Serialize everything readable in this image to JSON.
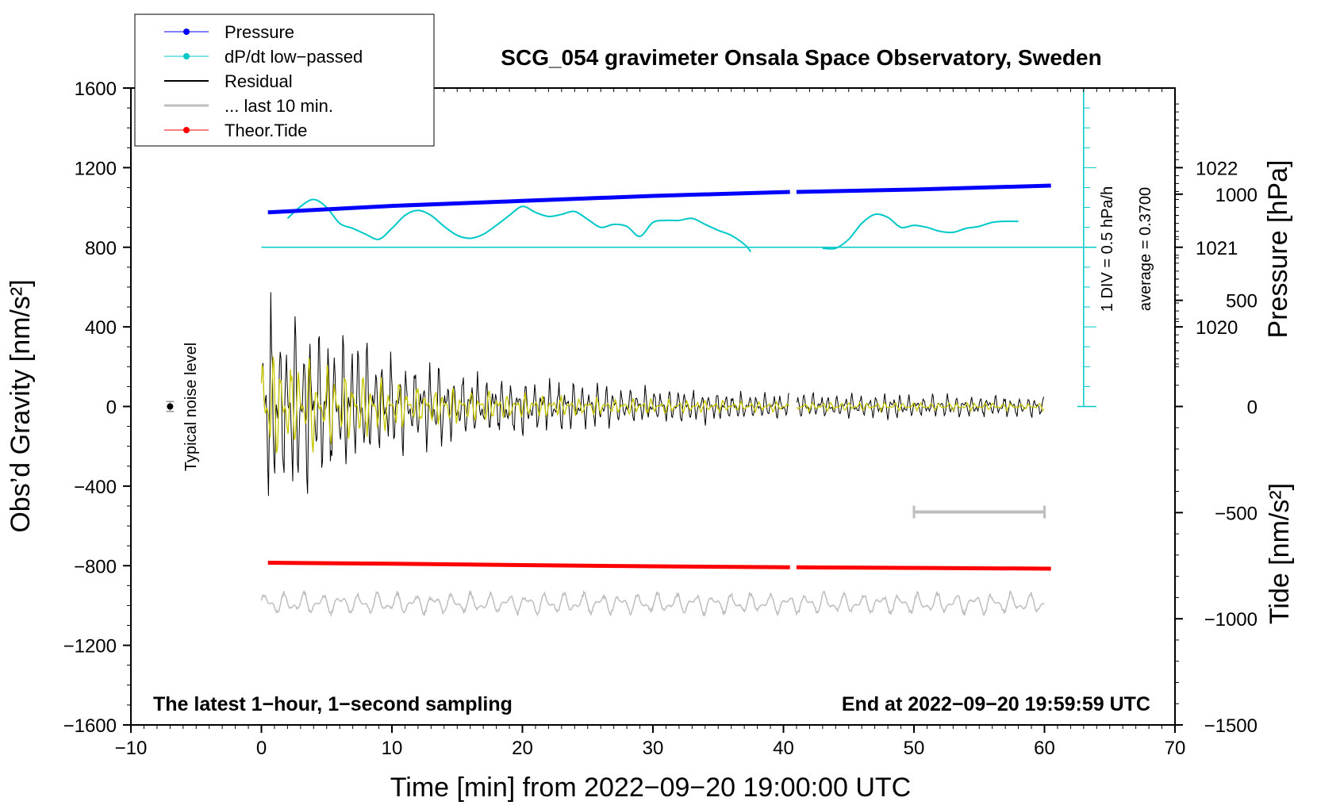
{
  "chart_data": {
    "type": "line",
    "title": "SCG_054 gravimeter Onsala Space Observatory, Sweden",
    "xlabel": "Time [min] from 2022−09−20 19:00:00 UTC",
    "ylabel_left": "Obs’d Gravity [nm/s²]",
    "ylabel_right_top": "Pressure [hPa]",
    "ylabel_right_bottom": "Tide [nm/s²]",
    "xlim": [
      -10,
      70
    ],
    "ylim": [
      -1600,
      1600
    ],
    "x_ticks": [
      -10,
      0,
      10,
      20,
      30,
      40,
      50,
      60,
      70
    ],
    "x_tick_labels": [
      "−10",
      "0",
      "10",
      "20",
      "30",
      "40",
      "50",
      "60",
      "70"
    ],
    "y_ticks": [
      -1600,
      -1200,
      -800,
      -400,
      0,
      400,
      800,
      1200,
      1600
    ],
    "y_tick_labels": [
      "−1600",
      "−1200",
      "−800",
      "−400",
      "0",
      "400",
      "800",
      "1200",
      "1600"
    ],
    "pressure_axis": {
      "ticks": [
        1020,
        1021,
        1022
      ],
      "tick_labels": [
        "1020",
        "1021",
        "1022"
      ],
      "gravity_at_1021": 800,
      "gravity_per_hPa": 400
    },
    "tide_axis": {
      "ticks": [
        -1500,
        -1000,
        -500,
        0,
        500,
        1000
      ],
      "tick_labels": [
        "−1500",
        "−1000",
        "−500",
        "0",
        "500",
        "1000"
      ],
      "range": [
        -1500,
        1500
      ]
    },
    "legend": {
      "position": "top-left",
      "entries": [
        {
          "label": "Pressure",
          "color": "#0000ff",
          "marker": true
        },
        {
          "label": "dP/dt low−passed",
          "color": "#00c8c8",
          "marker": true
        },
        {
          "label": "Residual",
          "color": "#000000",
          "marker": false
        },
        {
          "label": "... last 10 min.",
          "color": "#bebebe",
          "marker": false
        },
        {
          "label": "Theor.Tide",
          "color": "#ff0000",
          "marker": true
        }
      ]
    },
    "annotations": {
      "bottom_left": "The latest 1−hour, 1−second sampling",
      "bottom_right": "End at 2022−09−20 19:59:59 UTC",
      "noise": "Typical noise level",
      "div_scale": "1 DIV = 0.5 hPa/h",
      "average": "average = 0.3700"
    },
    "series": [
      {
        "name": "Pressure",
        "color": "#0000ff",
        "segments": [
          {
            "x": [
              0.5,
              10,
              20,
              30,
              40.5
            ],
            "y": [
              975,
              1008,
              1033,
              1058,
              1078
            ]
          },
          {
            "x": [
              41,
              50,
              60.5
            ],
            "y": [
              1078,
              1090,
              1110
            ]
          }
        ]
      },
      {
        "name": "dP/dt low-passed",
        "color": "#00c8c8",
        "baseline": 800,
        "segments": [
          {
            "x": [
              2,
              3,
              4,
              5,
              6,
              7,
              8,
              9,
              10,
              11,
              12,
              13,
              14,
              15,
              16,
              17,
              18,
              19,
              20,
              21,
              22,
              23,
              24,
              25,
              26,
              27,
              28,
              29,
              30,
              31,
              32,
              33,
              34,
              35,
              36,
              37,
              37.5
            ],
            "y": [
              945,
              1005,
              1040,
              1000,
              920,
              895,
              865,
              840,
              895,
              960,
              985,
              960,
              905,
              860,
              845,
              865,
              910,
              960,
              1005,
              975,
              955,
              965,
              980,
              940,
              900,
              915,
              905,
              855,
              925,
              935,
              935,
              945,
              915,
              885,
              860,
              815,
              778
            ]
          },
          {
            "x": [
              43,
              44,
              45,
              46,
              47,
              48,
              49,
              50,
              51,
              52,
              53,
              54,
              55,
              56,
              57,
              58
            ],
            "y": [
              795,
              795,
              840,
              920,
              965,
              950,
              900,
              910,
              900,
              880,
              875,
              895,
              905,
              925,
              930,
              930
            ]
          }
        ]
      },
      {
        "name": "Residual",
        "color": "#000000",
        "x_range": [
          0,
          60
        ],
        "gap": [
          40.5,
          41
        ],
        "envelope_start": 500,
        "envelope_end": 50
      },
      {
        "name": "Residual low-passed",
        "color": "#c8c800",
        "x_range": [
          0,
          60
        ],
        "gap": [
          40.5,
          41
        ],
        "envelope_start": 260,
        "envelope_end": 15
      },
      {
        "name": "Theor.Tide",
        "color": "#ff0000",
        "segments": [
          {
            "x": [
              0.5,
              10,
              20,
              30,
              40.5
            ],
            "y": [
              -785,
              -790,
              -797,
              -803,
              -808
            ]
          },
          {
            "x": [
              41,
              50,
              60.5
            ],
            "y": [
              -808,
              -811,
              -815
            ]
          }
        ]
      },
      {
        "name": "... last 10 min.",
        "color": "#bebebe",
        "x_range": [
          0,
          60
        ],
        "center": -990,
        "amplitude": 55
      },
      {
        "name": "Typical noise level",
        "color": "#000000",
        "x": -7,
        "y": 0,
        "error": 25
      },
      {
        "name": "Scale bar",
        "color": "#bebebe",
        "x": [
          50,
          60
        ],
        "y": -530
      }
    ]
  }
}
